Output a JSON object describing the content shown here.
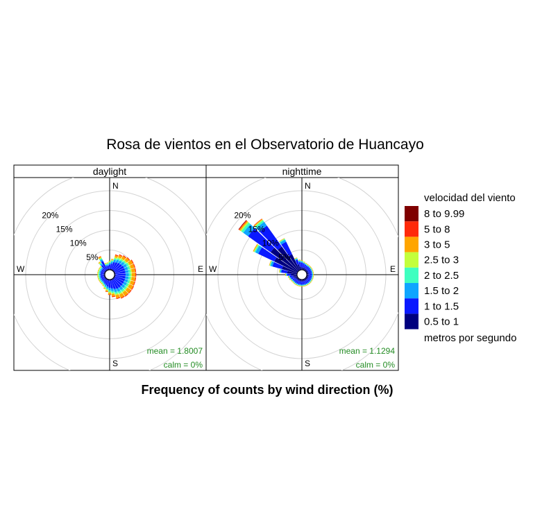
{
  "title": "Rosa de vientos en el Observatorio de Huancayo",
  "xlabel": "Frequency of counts by wind direction (%)",
  "cardinals": {
    "n": "N",
    "e": "E",
    "s": "S",
    "w": "W"
  },
  "ring_labels": [
    "5%",
    "10%",
    "15%",
    "20%"
  ],
  "legend": {
    "title": "velocidad del viento",
    "subtitle": "metros por segundo",
    "bins": [
      "0.5 to 1",
      "1 to 1.5",
      "1.5 to 2",
      "2 to 2.5",
      "2.5 to 3",
      "3 to 5",
      "5 to 8",
      "8 to 9.99"
    ],
    "colors": [
      "#00007F",
      "#0A19FF",
      "#0FA5FF",
      "#3FFFC0",
      "#C3FF3C",
      "#FFA500",
      "#FF2A0A",
      "#7F0000"
    ]
  },
  "stats_color": "#228B22",
  "chart_data": [
    {
      "type": "windrose",
      "panel": "daylight",
      "mean_label": "mean = 1.8007",
      "calm_label": "calm = 0%",
      "rlim": [
        0,
        24
      ],
      "directions_deg": [
        0,
        10,
        20,
        30,
        40,
        50,
        60,
        70,
        80,
        90,
        100,
        110,
        120,
        130,
        140,
        150,
        160,
        170,
        180,
        190,
        200,
        210,
        220,
        230,
        240,
        250,
        260,
        270,
        280,
        290,
        300,
        310,
        320,
        330,
        340,
        350
      ],
      "series": [
        {
          "bin": "0.5 to 1",
          "values": [
            0.3,
            0.3,
            0.3,
            0.3,
            0.3,
            0.3,
            0.3,
            0.3,
            0.3,
            0.3,
            0.3,
            0.3,
            0.3,
            0.3,
            0.3,
            0.3,
            0.3,
            0.3,
            0.3,
            0.3,
            0.3,
            0.3,
            0.3,
            0.3,
            0.3,
            0.3,
            0.3,
            0.3,
            0.3,
            0.3,
            0.3,
            0.3,
            0.3,
            0.3,
            0.3,
            0.3
          ]
        },
        {
          "bin": "1 to 1.5",
          "values": [
            1.0,
            1.3,
            1.8,
            2.0,
            2.2,
            2.3,
            2.5,
            2.5,
            2.5,
            2.5,
            2.5,
            2.5,
            2.5,
            2.5,
            2.5,
            2.5,
            2.3,
            2.0,
            1.8,
            1.5,
            1.2,
            1.0,
            0.8,
            0.8,
            0.8,
            0.8,
            0.8,
            0.8,
            0.8,
            0.8,
            0.8,
            0.8,
            1.5,
            2.3,
            0.8,
            0.8
          ]
        },
        {
          "bin": "1.5 to 2",
          "values": [
            0.4,
            0.5,
            0.6,
            0.7,
            0.7,
            0.8,
            0.8,
            0.8,
            0.8,
            0.8,
            0.8,
            0.8,
            0.8,
            0.8,
            0.8,
            0.8,
            0.8,
            0.7,
            0.6,
            0.5,
            0.4,
            0.3,
            0.3,
            0.3,
            0.3,
            0.3,
            0.3,
            0.3,
            0.3,
            0.3,
            0.3,
            0.3,
            0.4,
            0.5,
            0.3,
            0.3
          ]
        },
        {
          "bin": "2 to 2.5",
          "values": [
            0.3,
            0.3,
            0.4,
            0.4,
            0.4,
            0.4,
            0.5,
            0.5,
            0.5,
            0.5,
            0.5,
            0.5,
            0.5,
            0.5,
            0.5,
            0.5,
            0.5,
            0.4,
            0.4,
            0.3,
            0.3,
            0.2,
            0.2,
            0.2,
            0.2,
            0.2,
            0.2,
            0.2,
            0.2,
            0.2,
            0.2,
            0.2,
            0.3,
            0.3,
            0.2,
            0.2
          ]
        },
        {
          "bin": "2.5 to 3",
          "values": [
            0.2,
            0.2,
            0.3,
            0.3,
            0.3,
            0.3,
            0.3,
            0.3,
            0.3,
            0.3,
            0.3,
            0.3,
            0.3,
            0.3,
            0.3,
            0.3,
            0.3,
            0.3,
            0.3,
            0.2,
            0.2,
            0.2,
            0.2,
            0.2,
            0.2,
            0.2,
            0.2,
            0.2,
            0.2,
            0.2,
            0.2,
            0.2,
            0.2,
            0.2,
            0.2,
            0.2
          ]
        },
        {
          "bin": "3 to 5",
          "values": [
            0.1,
            0.2,
            0.5,
            0.6,
            0.7,
            0.8,
            0.9,
            0.9,
            0.9,
            0.9,
            0.9,
            0.9,
            1.0,
            1.0,
            1.0,
            0.9,
            0.8,
            0.6,
            0.4,
            0.3,
            0.2,
            0.1,
            0.1,
            0.1,
            0.1,
            0.1,
            0.1,
            0.1,
            0.1,
            0.1,
            0.1,
            0.1,
            0.2,
            0.3,
            0.1,
            0.1
          ]
        },
        {
          "bin": "5 to 8",
          "values": [
            0.0,
            0.0,
            0.2,
            0.2,
            0.2,
            0.2,
            0.2,
            0.2,
            0.2,
            0.2,
            0.2,
            0.2,
            0.2,
            0.2,
            0.2,
            0.2,
            0.2,
            0.2,
            0.1,
            0.1,
            0.0,
            0.0,
            0.0,
            0.0,
            0.0,
            0.0,
            0.0,
            0.0,
            0.0,
            0.0,
            0.0,
            0.0,
            0.0,
            0.1,
            0.0,
            0.0
          ]
        },
        {
          "bin": "8 to 9.99",
          "values": [
            0.0,
            0.0,
            0.0,
            0.0,
            0.0,
            0.0,
            0.0,
            0.0,
            0.0,
            0.0,
            0.0,
            0.0,
            0.0,
            0.0,
            0.0,
            0.0,
            0.0,
            0.0,
            0.0,
            0.0,
            0.0,
            0.0,
            0.0,
            0.0,
            0.0,
            0.0,
            0.0,
            0.0,
            0.0,
            0.0,
            0.0,
            0.0,
            0.0,
            0.0,
            0.0,
            0.0
          ]
        }
      ]
    },
    {
      "type": "windrose",
      "panel": "nighttime",
      "mean_label": "mean = 1.1294",
      "calm_label": "calm = 0%",
      "rlim": [
        0,
        24
      ],
      "directions_deg": [
        0,
        10,
        20,
        30,
        40,
        50,
        60,
        70,
        80,
        90,
        100,
        110,
        120,
        130,
        140,
        150,
        160,
        170,
        180,
        190,
        200,
        210,
        220,
        230,
        240,
        250,
        260,
        270,
        280,
        290,
        300,
        310,
        320,
        330,
        340,
        350
      ],
      "series": [
        {
          "bin": "0.5 to 1",
          "values": [
            0.6,
            0.6,
            0.6,
            0.5,
            0.5,
            0.5,
            0.5,
            0.5,
            0.5,
            0.5,
            0.5,
            0.5,
            0.5,
            0.5,
            0.5,
            0.5,
            0.5,
            0.5,
            0.5,
            0.5,
            0.5,
            0.5,
            0.5,
            0.5,
            0.6,
            0.8,
            1.0,
            1.5,
            2.5,
            4.0,
            6.5,
            8.5,
            7.5,
            4.5,
            1.5,
            0.8
          ]
        },
        {
          "bin": "1 to 1.5",
          "values": [
            1.2,
            1.0,
            0.8,
            0.8,
            0.8,
            0.8,
            0.8,
            0.8,
            0.8,
            0.8,
            0.8,
            0.8,
            0.8,
            0.8,
            0.8,
            0.8,
            0.8,
            0.8,
            0.8,
            0.8,
            0.8,
            0.8,
            0.8,
            0.8,
            0.8,
            0.8,
            0.8,
            1.0,
            1.5,
            2.5,
            4.5,
            7.0,
            6.5,
            3.5,
            1.2,
            1.2
          ]
        },
        {
          "bin": "1.5 to 2",
          "values": [
            0.3,
            0.2,
            0.2,
            0.2,
            0.2,
            0.2,
            0.2,
            0.2,
            0.2,
            0.2,
            0.2,
            0.2,
            0.2,
            0.2,
            0.2,
            0.2,
            0.2,
            0.2,
            0.2,
            0.2,
            0.2,
            0.2,
            0.2,
            0.2,
            0.2,
            0.2,
            0.2,
            0.2,
            0.3,
            0.5,
            0.8,
            1.5,
            1.2,
            0.6,
            0.3,
            0.3
          ]
        },
        {
          "bin": "2 to 2.5",
          "values": [
            0.1,
            0.1,
            0.1,
            0.1,
            0.1,
            0.1,
            0.1,
            0.1,
            0.1,
            0.1,
            0.1,
            0.1,
            0.1,
            0.1,
            0.1,
            0.1,
            0.1,
            0.1,
            0.1,
            0.1,
            0.1,
            0.1,
            0.1,
            0.1,
            0.1,
            0.1,
            0.1,
            0.1,
            0.1,
            0.2,
            0.3,
            0.6,
            0.5,
            0.2,
            0.1,
            0.1
          ]
        },
        {
          "bin": "2.5 to 3",
          "values": [
            0.1,
            0.1,
            0.1,
            0.1,
            0.1,
            0.1,
            0.1,
            0.1,
            0.1,
            0.1,
            0.1,
            0.1,
            0.1,
            0.1,
            0.1,
            0.1,
            0.1,
            0.1,
            0.1,
            0.1,
            0.1,
            0.1,
            0.1,
            0.1,
            0.1,
            0.1,
            0.1,
            0.1,
            0.1,
            0.1,
            0.2,
            0.3,
            0.2,
            0.1,
            0.1,
            0.1
          ]
        },
        {
          "bin": "3 to 5",
          "values": [
            0.1,
            0.1,
            0.1,
            0.1,
            0.1,
            0.1,
            0.1,
            0.1,
            0.1,
            0.1,
            0.1,
            0.1,
            0.1,
            0.1,
            0.1,
            0.1,
            0.1,
            0.1,
            0.1,
            0.1,
            0.1,
            0.1,
            0.1,
            0.1,
            0.1,
            0.1,
            0.1,
            0.1,
            0.1,
            0.1,
            0.2,
            0.3,
            0.2,
            0.1,
            0.1,
            0.1
          ]
        },
        {
          "bin": "5 to 8",
          "values": [
            0.0,
            0.0,
            0.0,
            0.0,
            0.0,
            0.0,
            0.0,
            0.0,
            0.0,
            0.0,
            0.0,
            0.0,
            0.0,
            0.0,
            0.0,
            0.0,
            0.0,
            0.0,
            0.0,
            0.0,
            0.0,
            0.0,
            0.0,
            0.0,
            0.0,
            0.0,
            0.0,
            0.0,
            0.0,
            0.0,
            0.0,
            0.2,
            0.1,
            0.0,
            0.0,
            0.0
          ]
        },
        {
          "bin": "8 to 9.99",
          "values": [
            0.0,
            0.0,
            0.0,
            0.0,
            0.0,
            0.0,
            0.0,
            0.0,
            0.0,
            0.0,
            0.0,
            0.0,
            0.0,
            0.0,
            0.0,
            0.0,
            0.0,
            0.0,
            0.0,
            0.0,
            0.0,
            0.0,
            0.0,
            0.0,
            0.0,
            0.0,
            0.0,
            0.0,
            0.0,
            0.0,
            0.0,
            0.1,
            0.0,
            0.0,
            0.0,
            0.0
          ]
        }
      ]
    }
  ]
}
